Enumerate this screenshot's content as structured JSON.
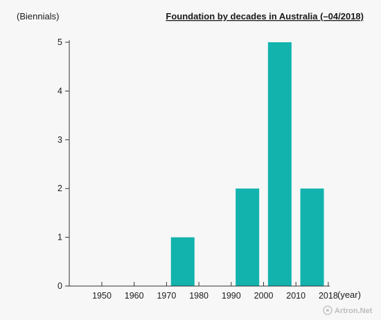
{
  "chart_data": {
    "type": "bar",
    "title": "Foundation by decades in Australia (–04/2018)",
    "ylabel": "(Biennials)",
    "xlabel": "(year)",
    "ylim": [
      0,
      5
    ],
    "yticks": [
      0,
      1,
      2,
      3,
      4,
      5
    ],
    "xticks": [
      "1950",
      "1960",
      "1970",
      "1980",
      "1990",
      "2000",
      "2010",
      "2018"
    ],
    "categories": [
      "1940–1950",
      "1950–1960",
      "1960–1970",
      "1970–1980",
      "1980–1990",
      "1990–2000",
      "2000–2010",
      "2010–2018"
    ],
    "values": [
      0,
      0,
      0,
      1,
      0,
      2,
      5,
      2
    ],
    "bar_color": "#12b3ad",
    "grid": false
  },
  "watermark": {
    "text": "Artron.Net",
    "icon": "artron-logo-icon"
  }
}
